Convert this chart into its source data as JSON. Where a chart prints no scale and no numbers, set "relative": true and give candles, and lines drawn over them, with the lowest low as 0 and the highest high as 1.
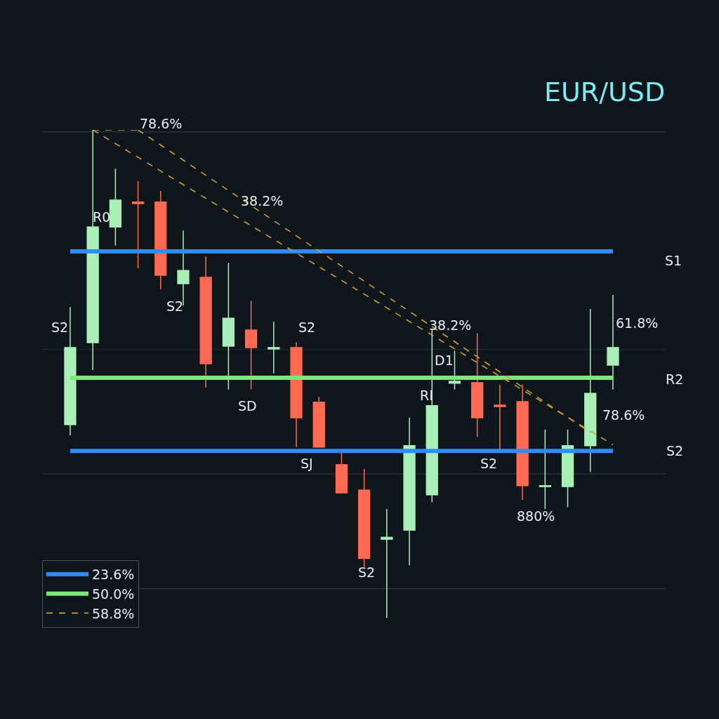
{
  "chart_data": {
    "type": "candlestick",
    "title": "EUR/USD",
    "relative": true,
    "tick_labels": false,
    "legend": "bottom left",
    "categories": [
      null,
      null,
      null,
      null,
      null,
      null,
      null,
      null,
      null,
      null,
      null,
      null,
      null,
      null,
      null,
      null,
      null,
      null,
      null,
      null,
      null,
      null,
      null,
      null,
      null
    ],
    "ohlc": [
      [
        0.396,
        0.637,
        0.374,
        0.554
      ],
      [
        0.564,
        1.0,
        0.508,
        0.801
      ],
      [
        0.801,
        0.921,
        0.763,
        0.856
      ],
      [
        0.852,
        0.895,
        0.717,
        0.849
      ],
      [
        0.852,
        0.875,
        0.673,
        0.702
      ],
      [
        0.685,
        0.794,
        0.64,
        0.712
      ],
      [
        0.698,
        0.741,
        0.472,
        0.521
      ],
      [
        0.557,
        0.727,
        0.468,
        0.614
      ],
      [
        0.59,
        0.65,
        0.468,
        0.554
      ],
      [
        0.551,
        0.607,
        0.501,
        0.554
      ],
      [
        0.554,
        0.565,
        0.35,
        0.41
      ],
      [
        0.442,
        0.453,
        0.35,
        0.35
      ],
      [
        0.314,
        0.338,
        0.256,
        0.256
      ],
      [
        0.262,
        0.305,
        0.104,
        0.122
      ],
      [
        0.161,
        0.223,
        0.0,
        0.165
      ],
      [
        0.18,
        0.41,
        0.108,
        0.353
      ],
      [
        0.252,
        0.59,
        0.237,
        0.435
      ],
      [
        0.481,
        0.547,
        0.468,
        0.485
      ],
      [
        0.482,
        0.583,
        0.371,
        0.41
      ],
      [
        0.436,
        0.478,
        0.345,
        0.433
      ],
      [
        0.443,
        0.478,
        0.242,
        0.271
      ],
      [
        0.269,
        0.386,
        0.223,
        0.271
      ],
      [
        0.269,
        0.386,
        0.227,
        0.353
      ],
      [
        0.353,
        0.633,
        0.299,
        0.46
      ],
      [
        0.518,
        0.662,
        0.468,
        0.554
      ]
    ],
    "colors": [
      "#a8f0b8",
      "#a8f0b8",
      "#a8f0b8",
      "#ff6a50",
      "#ff6a50",
      "#a8f0b8",
      "#ff6a50",
      "#a8f0b8",
      "#ff6a50",
      "#a8f0b8",
      "#ff6a50",
      "#ff6a50",
      "#ff6a50",
      "#ff6a50",
      "#a8f0b8",
      "#a8f0b8",
      "#a8f0b8",
      "#a8f0b8",
      "#ff6a50",
      "#ff6a50",
      "#ff6a50",
      "#a8f0b8",
      "#a8f0b8",
      "#a8f0b8",
      "#a8f0b8"
    ],
    "series": [
      {
        "name": "23.6%",
        "type": "line",
        "color": "#2f8cff",
        "line_style": "solid",
        "values": [
          0.751,
          0.751,
          0.751,
          0.751,
          0.751,
          0.751,
          0.751,
          0.751,
          0.751,
          0.751,
          0.751,
          0.751,
          0.751,
          0.751,
          0.751,
          0.751,
          0.751,
          0.751,
          0.751,
          0.751,
          0.751,
          0.751,
          0.751,
          0.751,
          0.751
        ]
      },
      {
        "type": "line",
        "color": "#2f8cff",
        "line_style": "solid",
        "values": [
          0.342,
          0.342,
          0.342,
          0.342,
          0.342,
          0.342,
          0.342,
          0.342,
          0.342,
          0.342,
          0.342,
          0.342,
          0.342,
          0.342,
          0.342,
          0.342,
          0.342,
          0.342,
          0.342,
          0.342,
          0.342,
          0.342,
          0.342,
          0.342,
          0.342
        ]
      },
      {
        "name": "50.0%",
        "type": "line",
        "color": "#7ee87a",
        "line_style": "solid",
        "values": [
          0.492,
          0.492,
          0.492,
          0.492,
          0.492,
          0.492,
          0.492,
          0.492,
          0.492,
          0.492,
          0.492,
          0.492,
          0.492,
          0.492,
          0.492,
          0.492,
          0.492,
          0.492,
          0.492,
          0.492,
          0.492,
          0.492,
          0.492,
          0.492,
          0.492
        ]
      },
      {
        "name": "58.8%",
        "type": "line",
        "color": "#c9a030",
        "line_style": "dashed",
        "values": [
          null,
          1.0,
          null,
          null,
          null,
          null,
          null,
          null,
          null,
          null,
          null,
          null,
          null,
          null,
          null,
          null,
          null,
          null,
          null,
          null,
          null,
          null,
          null,
          null,
          0.355
        ]
      },
      {
        "type": "line",
        "color": "#c9a030",
        "line_style": "dashed",
        "values": [
          null,
          null,
          null,
          1.0,
          null,
          null,
          null,
          null,
          null,
          null,
          null,
          null,
          null,
          null,
          null,
          null,
          null,
          null,
          null,
          null,
          null,
          null,
          null,
          0.38,
          null
        ]
      },
      {
        "type": "line",
        "color": "#c9a030",
        "line_style": "dashed",
        "values": [
          null,
          1.0,
          null,
          1.0,
          null,
          null,
          null,
          null,
          null,
          null,
          null,
          null,
          null,
          null,
          null,
          null,
          null,
          null,
          null,
          null,
          null,
          null,
          null,
          null,
          null
        ]
      }
    ],
    "ref_lines": [
      {
        "axis": "y",
        "value": 0.996,
        "color": "#34404a"
      },
      {
        "axis": "y",
        "value": 0.55,
        "color": "#26313a"
      },
      {
        "axis": "y",
        "value": 0.295,
        "color": "#34404a"
      },
      {
        "axis": "y",
        "value": 0.06,
        "color": "#34404a"
      }
    ],
    "annotations": [
      "78.6%",
      "38.2%",
      "R0",
      "S2",
      "S2",
      "S2",
      "38.2%",
      "61.8%",
      "S1",
      "D1",
      "R2",
      "RI",
      "SD",
      "78.6%",
      "S2",
      "SJ",
      "S2",
      "880%",
      "S2"
    ]
  }
}
